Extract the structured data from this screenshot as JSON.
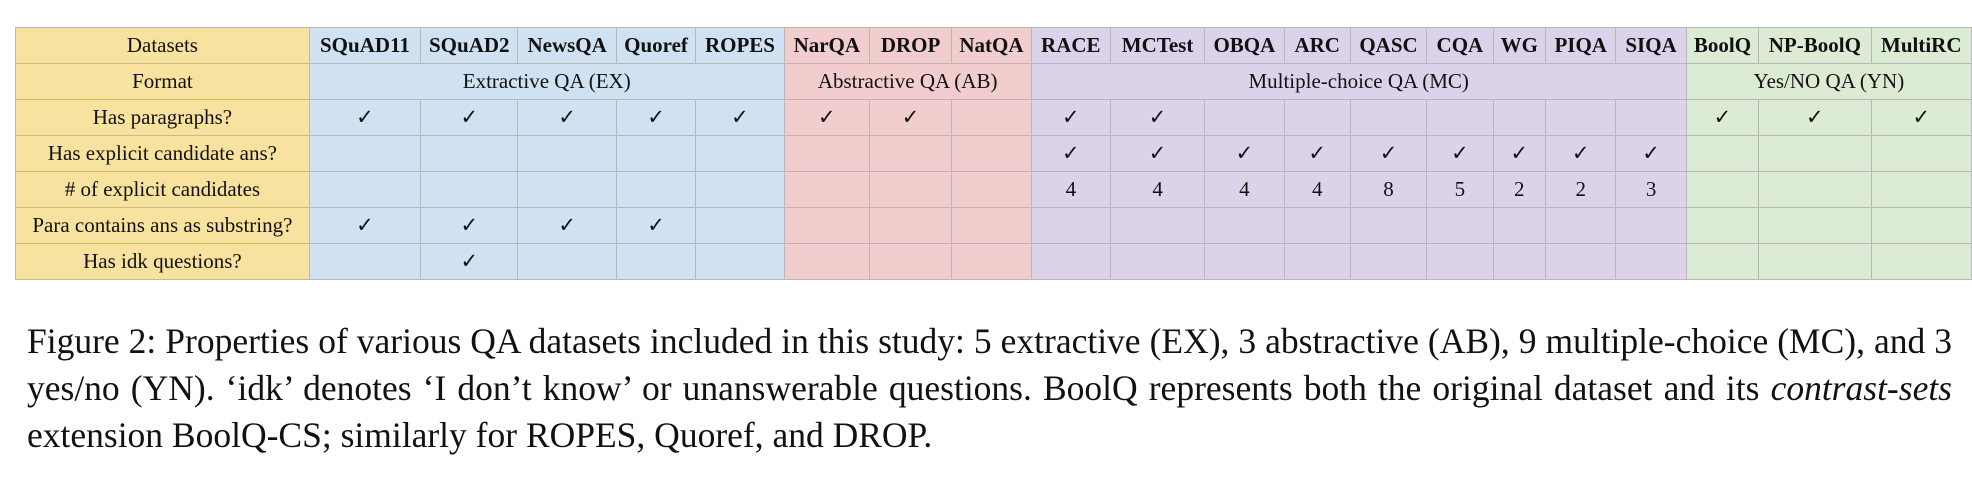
{
  "table": {
    "row_header_label": "Datasets",
    "datasets": [
      {
        "name": "SQuAD11",
        "group": "ex"
      },
      {
        "name": "SQuAD2",
        "group": "ex"
      },
      {
        "name": "NewsQA",
        "group": "ex"
      },
      {
        "name": "Quoref",
        "group": "ex"
      },
      {
        "name": "ROPES",
        "group": "ex"
      },
      {
        "name": "NarQA",
        "group": "ab"
      },
      {
        "name": "DROP",
        "group": "ab"
      },
      {
        "name": "NatQA",
        "group": "ab"
      },
      {
        "name": "RACE",
        "group": "mc"
      },
      {
        "name": "MCTest",
        "group": "mc"
      },
      {
        "name": "OBQA",
        "group": "mc"
      },
      {
        "name": "ARC",
        "group": "mc"
      },
      {
        "name": "QASC",
        "group": "mc"
      },
      {
        "name": "CQA",
        "group": "mc"
      },
      {
        "name": "WG",
        "group": "mc"
      },
      {
        "name": "PIQA",
        "group": "mc"
      },
      {
        "name": "SIQA",
        "group": "mc"
      },
      {
        "name": "BoolQ",
        "group": "yn"
      },
      {
        "name": "NP-BoolQ",
        "group": "yn"
      },
      {
        "name": "MultiRC",
        "group": "yn"
      }
    ],
    "format_row": {
      "label": "Format",
      "groups": [
        {
          "label": "Extractive QA (EX)",
          "span": 5,
          "group": "ex"
        },
        {
          "label": "Abstractive QA (AB)",
          "span": 3,
          "group": "ab"
        },
        {
          "label": "Multiple-choice QA (MC)",
          "span": 9,
          "group": "mc"
        },
        {
          "label": "Yes/NO QA (YN)",
          "span": 3,
          "group": "yn"
        }
      ]
    },
    "property_rows": [
      {
        "label": "Has paragraphs?",
        "cells": [
          "✓",
          "✓",
          "✓",
          "✓",
          "✓",
          "✓",
          "✓",
          "",
          "✓",
          "✓",
          "",
          "",
          "",
          "",
          "",
          "",
          "",
          "✓",
          "✓",
          "✓"
        ]
      },
      {
        "label": "Has explicit candidate ans?",
        "cells": [
          "",
          "",
          "",
          "",
          "",
          "",
          "",
          "",
          "✓",
          "✓",
          "✓",
          "✓",
          "✓",
          "✓",
          "✓",
          "✓",
          "✓",
          "",
          "",
          ""
        ]
      },
      {
        "label": "# of explicit candidates",
        "cells": [
          "",
          "",
          "",
          "",
          "",
          "",
          "",
          "",
          "4",
          "4",
          "4",
          "4",
          "8",
          "5",
          "2",
          "2",
          "3",
          "",
          "",
          ""
        ]
      },
      {
        "label": "Para contains ans as substring?",
        "cells": [
          "✓",
          "✓",
          "✓",
          "✓",
          "",
          "",
          "",
          "",
          "",
          "",
          "",
          "",
          "",
          "",
          "",
          "",
          "",
          "",
          "",
          ""
        ]
      },
      {
        "label": "Has idk questions?",
        "cells": [
          "",
          "✓",
          "",
          "",
          "",
          "",
          "",
          "",
          "",
          "",
          "",
          "",
          "",
          "",
          "",
          "",
          "",
          "",
          "",
          ""
        ]
      }
    ]
  },
  "caption": {
    "prefix": "Figure 2: Properties of various QA datasets included in this study: 5 extractive (EX), 3 abstractive (AB), 9 multiple-choice (MC), and 3 yes/no (YN). ‘idk’ denotes ‘I don’t know’ or unanswerable questions. BoolQ represents both the original dataset and its ",
    "emphasis": "contrast-sets",
    "suffix": " extension BoolQ-CS; similarly for ROPES, Quoref, and DROP."
  }
}
